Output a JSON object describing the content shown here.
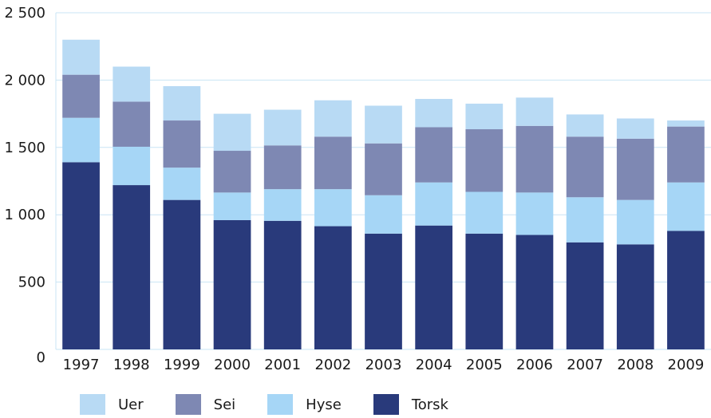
{
  "chart_data": {
    "type": "bar",
    "stacked": true,
    "categories": [
      "1997",
      "1998",
      "1999",
      "2000",
      "2001",
      "2002",
      "2003",
      "2004",
      "2005",
      "2006",
      "2007",
      "2008",
      "2009"
    ],
    "series": [
      {
        "name": "Torsk",
        "color": "#293a7b",
        "values": [
          1390,
          1220,
          1110,
          960,
          955,
          915,
          860,
          920,
          860,
          850,
          795,
          780,
          880
        ]
      },
      {
        "name": "Hyse",
        "color": "#a6d6f6",
        "values": [
          330,
          285,
          240,
          205,
          235,
          275,
          285,
          320,
          310,
          315,
          335,
          330,
          360
        ]
      },
      {
        "name": "Sei",
        "color": "#7e88b3",
        "values": [
          320,
          335,
          350,
          310,
          325,
          390,
          385,
          410,
          465,
          495,
          450,
          455,
          415
        ]
      },
      {
        "name": "Uer",
        "color": "#b8daf4",
        "values": [
          260,
          260,
          255,
          275,
          265,
          270,
          280,
          210,
          190,
          210,
          165,
          150,
          45
        ]
      }
    ],
    "yticks": [
      "0",
      "500",
      "1 000",
      "1 500",
      "2 000",
      "2 500"
    ],
    "ylim": [
      0,
      2500
    ],
    "grid": true,
    "legend_position": "bottom-left",
    "title": "",
    "xlabel": "",
    "ylabel": ""
  }
}
